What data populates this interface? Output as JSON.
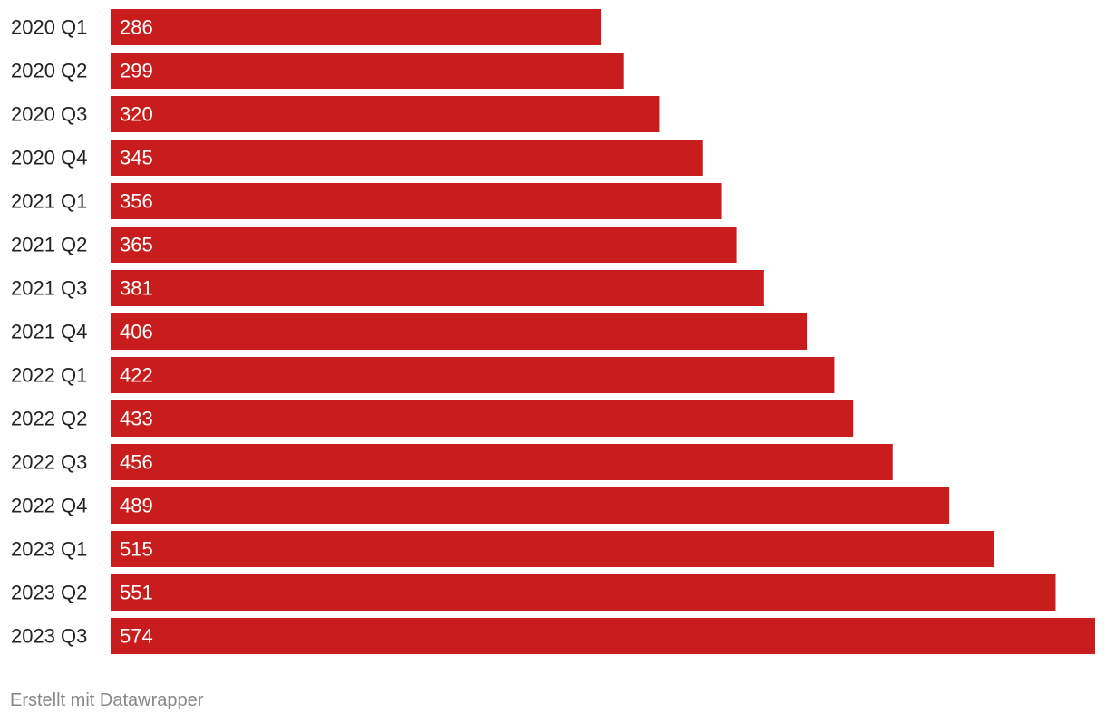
{
  "chart_data": {
    "type": "bar",
    "orientation": "horizontal",
    "categories": [
      "2020 Q1",
      "2020 Q2",
      "2020 Q3",
      "2020 Q4",
      "2021 Q1",
      "2021 Q2",
      "2021 Q3",
      "2021 Q4",
      "2022 Q1",
      "2022 Q2",
      "2022 Q3",
      "2022 Q4",
      "2023 Q1",
      "2023 Q2",
      "2023 Q3"
    ],
    "values": [
      286,
      299,
      320,
      345,
      356,
      365,
      381,
      406,
      422,
      433,
      456,
      489,
      515,
      551,
      574
    ],
    "title": "",
    "xlabel": "",
    "ylabel": "",
    "xlim": [
      0,
      574
    ],
    "grid": false,
    "legend": "none",
    "bar_color": "#c91d1d",
    "value_label_color": "#ffffff",
    "category_label_color": "#222222"
  },
  "footer": {
    "text": "Erstellt mit Datawrapper"
  }
}
